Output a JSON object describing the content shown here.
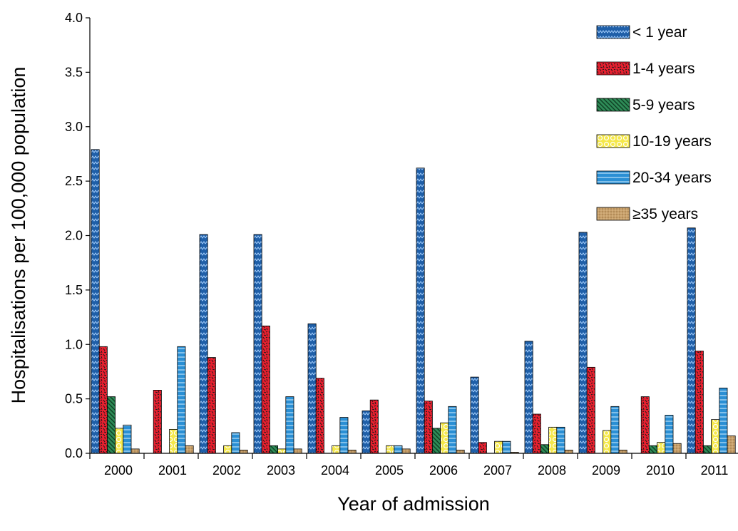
{
  "chart_data": {
    "type": "bar",
    "title": "",
    "xlabel": "Year of admission",
    "ylabel": "Hospitalisations per 100,000 population",
    "ylim": [
      0,
      4.0
    ],
    "yticks": [
      "0.0",
      "0.5",
      "1.0",
      "1.5",
      "2.0",
      "2.5",
      "3.0",
      "3.5",
      "4.0"
    ],
    "grid": false,
    "legend_position": "top-right",
    "categories": [
      "2000",
      "2001",
      "2002",
      "2003",
      "2004",
      "2005",
      "2006",
      "2007",
      "2008",
      "2009",
      "2010",
      "2011"
    ],
    "series": [
      {
        "name": "< 1 year",
        "color": "#1f5fa8",
        "pattern": "zigzag",
        "values": [
          2.79,
          0.0,
          2.01,
          2.01,
          1.19,
          0.39,
          2.62,
          0.7,
          1.03,
          2.03,
          0.0,
          2.07
        ]
      },
      {
        "name": "1-4 years",
        "color": "#e8202f",
        "pattern": "dashes",
        "values": [
          0.98,
          0.58,
          0.88,
          1.17,
          0.69,
          0.49,
          0.48,
          0.1,
          0.36,
          0.79,
          0.52,
          0.94
        ]
      },
      {
        "name": "5-9 years",
        "color": "#2e8b57",
        "pattern": "diagonal",
        "values": [
          0.52,
          0.0,
          0.0,
          0.07,
          0.0,
          0.0,
          0.23,
          0.0,
          0.08,
          0.0,
          0.07,
          0.07
        ]
      },
      {
        "name": "10-19 years",
        "color": "#f5e84a",
        "pattern": "circles",
        "values": [
          0.23,
          0.22,
          0.07,
          0.04,
          0.07,
          0.07,
          0.28,
          0.11,
          0.24,
          0.21,
          0.1,
          0.31
        ]
      },
      {
        "name": "20-34 years",
        "color": "#2a8fd4",
        "pattern": "horizontal",
        "values": [
          0.26,
          0.98,
          0.19,
          0.52,
          0.33,
          0.07,
          0.43,
          0.11,
          0.24,
          0.43,
          0.35,
          0.6
        ]
      },
      {
        "name": "≥35 years",
        "color": "#c8a06a",
        "pattern": "dots",
        "values": [
          0.04,
          0.07,
          0.03,
          0.04,
          0.03,
          0.04,
          0.03,
          0.01,
          0.03,
          0.03,
          0.09,
          0.16
        ]
      }
    ]
  }
}
